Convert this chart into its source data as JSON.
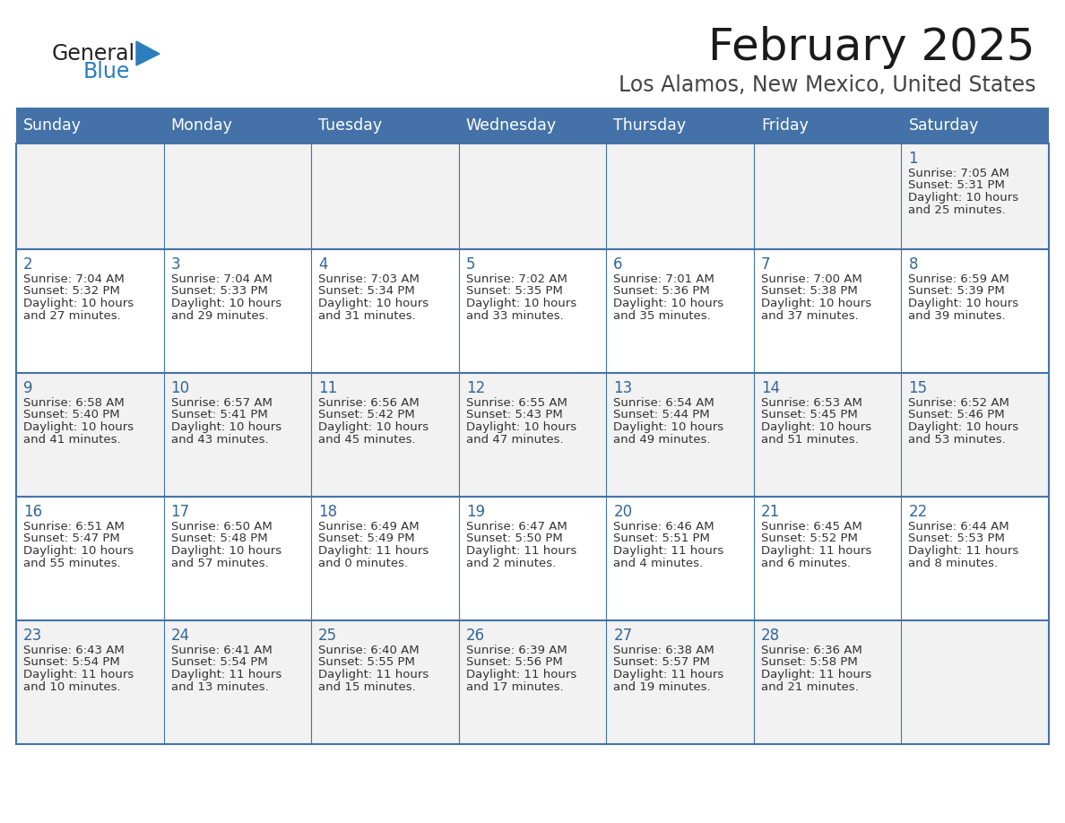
{
  "title": "February 2025",
  "subtitle": "Los Alamos, New Mexico, United States",
  "days_of_week": [
    "Sunday",
    "Monday",
    "Tuesday",
    "Wednesday",
    "Thursday",
    "Friday",
    "Saturday"
  ],
  "header_bg": "#4472a8",
  "header_text": "#ffffff",
  "row_bg_odd": "#f2f2f2",
  "row_bg_even": "#ffffff",
  "cell_border": "#4472a8",
  "day_number_color": "#336699",
  "info_text_color": "#333333",
  "logo_general_color": "#222222",
  "logo_blue_color": "#2a7dbf",
  "calendar_data": [
    [
      null,
      null,
      null,
      null,
      null,
      null,
      {
        "day": 1,
        "sunrise": "7:05 AM",
        "sunset": "5:31 PM",
        "daylight": "10 hours and 25 minutes."
      }
    ],
    [
      {
        "day": 2,
        "sunrise": "7:04 AM",
        "sunset": "5:32 PM",
        "daylight": "10 hours and 27 minutes."
      },
      {
        "day": 3,
        "sunrise": "7:04 AM",
        "sunset": "5:33 PM",
        "daylight": "10 hours and 29 minutes."
      },
      {
        "day": 4,
        "sunrise": "7:03 AM",
        "sunset": "5:34 PM",
        "daylight": "10 hours and 31 minutes."
      },
      {
        "day": 5,
        "sunrise": "7:02 AM",
        "sunset": "5:35 PM",
        "daylight": "10 hours and 33 minutes."
      },
      {
        "day": 6,
        "sunrise": "7:01 AM",
        "sunset": "5:36 PM",
        "daylight": "10 hours and 35 minutes."
      },
      {
        "day": 7,
        "sunrise": "7:00 AM",
        "sunset": "5:38 PM",
        "daylight": "10 hours and 37 minutes."
      },
      {
        "day": 8,
        "sunrise": "6:59 AM",
        "sunset": "5:39 PM",
        "daylight": "10 hours and 39 minutes."
      }
    ],
    [
      {
        "day": 9,
        "sunrise": "6:58 AM",
        "sunset": "5:40 PM",
        "daylight": "10 hours and 41 minutes."
      },
      {
        "day": 10,
        "sunrise": "6:57 AM",
        "sunset": "5:41 PM",
        "daylight": "10 hours and 43 minutes."
      },
      {
        "day": 11,
        "sunrise": "6:56 AM",
        "sunset": "5:42 PM",
        "daylight": "10 hours and 45 minutes."
      },
      {
        "day": 12,
        "sunrise": "6:55 AM",
        "sunset": "5:43 PM",
        "daylight": "10 hours and 47 minutes."
      },
      {
        "day": 13,
        "sunrise": "6:54 AM",
        "sunset": "5:44 PM",
        "daylight": "10 hours and 49 minutes."
      },
      {
        "day": 14,
        "sunrise": "6:53 AM",
        "sunset": "5:45 PM",
        "daylight": "10 hours and 51 minutes."
      },
      {
        "day": 15,
        "sunrise": "6:52 AM",
        "sunset": "5:46 PM",
        "daylight": "10 hours and 53 minutes."
      }
    ],
    [
      {
        "day": 16,
        "sunrise": "6:51 AM",
        "sunset": "5:47 PM",
        "daylight": "10 hours and 55 minutes."
      },
      {
        "day": 17,
        "sunrise": "6:50 AM",
        "sunset": "5:48 PM",
        "daylight": "10 hours and 57 minutes."
      },
      {
        "day": 18,
        "sunrise": "6:49 AM",
        "sunset": "5:49 PM",
        "daylight": "11 hours and 0 minutes."
      },
      {
        "day": 19,
        "sunrise": "6:47 AM",
        "sunset": "5:50 PM",
        "daylight": "11 hours and 2 minutes."
      },
      {
        "day": 20,
        "sunrise": "6:46 AM",
        "sunset": "5:51 PM",
        "daylight": "11 hours and 4 minutes."
      },
      {
        "day": 21,
        "sunrise": "6:45 AM",
        "sunset": "5:52 PM",
        "daylight": "11 hours and 6 minutes."
      },
      {
        "day": 22,
        "sunrise": "6:44 AM",
        "sunset": "5:53 PM",
        "daylight": "11 hours and 8 minutes."
      }
    ],
    [
      {
        "day": 23,
        "sunrise": "6:43 AM",
        "sunset": "5:54 PM",
        "daylight": "11 hours and 10 minutes."
      },
      {
        "day": 24,
        "sunrise": "6:41 AM",
        "sunset": "5:54 PM",
        "daylight": "11 hours and 13 minutes."
      },
      {
        "day": 25,
        "sunrise": "6:40 AM",
        "sunset": "5:55 PM",
        "daylight": "11 hours and 15 minutes."
      },
      {
        "day": 26,
        "sunrise": "6:39 AM",
        "sunset": "5:56 PM",
        "daylight": "11 hours and 17 minutes."
      },
      {
        "day": 27,
        "sunrise": "6:38 AM",
        "sunset": "5:57 PM",
        "daylight": "11 hours and 19 minutes."
      },
      {
        "day": 28,
        "sunrise": "6:36 AM",
        "sunset": "5:58 PM",
        "daylight": "11 hours and 21 minutes."
      },
      null
    ]
  ]
}
